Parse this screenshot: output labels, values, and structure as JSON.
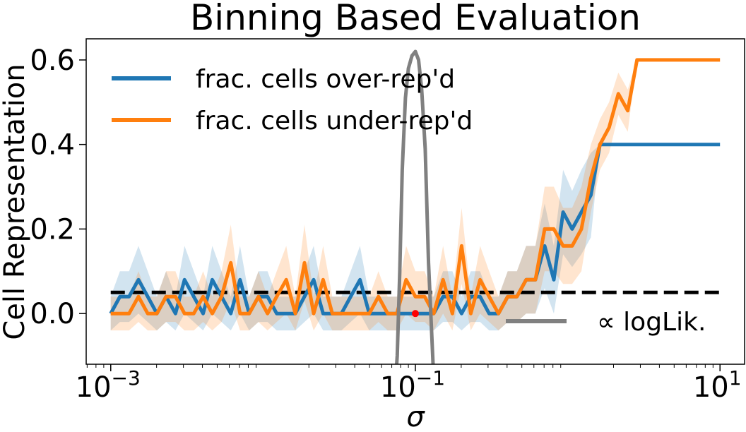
{
  "chart_data": {
    "type": "line",
    "title": "Binning Based Evaluation",
    "xlabel": "σ",
    "ylabel": "Cell Representation",
    "xscale": "log",
    "xlim": [
      0.00069,
      14.5
    ],
    "ylim": [
      -0.12,
      0.65
    ],
    "xticks": [
      {
        "value": 0.001,
        "base": "10",
        "exp": "−3"
      },
      {
        "value": 0.1,
        "base": "10",
        "exp": "−1"
      },
      {
        "value": 10,
        "base": "10",
        "exp": "1"
      }
    ],
    "yticks": [
      {
        "value": 0.0,
        "label": "0.0"
      },
      {
        "value": 0.2,
        "label": "0.2"
      },
      {
        "value": 0.4,
        "label": "0.4"
      },
      {
        "value": 0.6,
        "label": "0.6"
      }
    ],
    "legend_position": "top-left",
    "colors": {
      "over": "#1f77b4",
      "under": "#ff7f0e",
      "loglik": "#808080",
      "threshold": "#000000",
      "marker": "#ff0000"
    },
    "x": [
      0.001,
      0.00115,
      0.00132,
      0.00152,
      0.00175,
      0.00201,
      0.00231,
      0.00266,
      0.00305,
      0.00351,
      0.00404,
      0.00464,
      0.00534,
      0.00614,
      0.00706,
      0.00811,
      0.00933,
      0.0107,
      0.0123,
      0.0142,
      0.0163,
      0.0187,
      0.0215,
      0.0248,
      0.0285,
      0.0327,
      0.0376,
      0.0433,
      0.0498,
      0.0572,
      0.0658,
      0.0756,
      0.087,
      0.1,
      0.115,
      0.132,
      0.152,
      0.175,
      0.201,
      0.231,
      0.266,
      0.305,
      0.351,
      0.404,
      0.464,
      0.534,
      0.614,
      0.706,
      0.811,
      0.933,
      1.07,
      1.23,
      1.42,
      1.63,
      1.87,
      2.15,
      2.48,
      2.85,
      3.27,
      3.76,
      4.33,
      4.98,
      5.72,
      6.58,
      7.56,
      8.7,
      10.0
    ],
    "series": [
      {
        "name": "frac. cells over-rep'd",
        "values": [
          0.0,
          0.04,
          0.04,
          0.08,
          0.04,
          0.0,
          0.04,
          0.0,
          0.08,
          0.04,
          0.0,
          0.08,
          0.04,
          0.0,
          0.08,
          0.0,
          0.04,
          0.04,
          0.0,
          0.0,
          0.0,
          0.04,
          0.08,
          0.0,
          0.0,
          0.0,
          0.04,
          0.08,
          0.0,
          0.0,
          0.0,
          0.0,
          0.0,
          0.0,
          0.0,
          0.0,
          0.04,
          0.04,
          0.0,
          0.04,
          0.04,
          0.0,
          0.0,
          0.04,
          0.04,
          0.08,
          0.08,
          0.16,
          0.08,
          0.24,
          0.2,
          0.24,
          0.28,
          0.4,
          0.4,
          0.4,
          0.4,
          0.4,
          0.4,
          0.4,
          0.4,
          0.4,
          0.4,
          0.4,
          0.4,
          0.4,
          0.4
        ],
        "band": [
          0.04,
          0.06,
          0.06,
          0.08,
          0.06,
          0.04,
          0.06,
          0.04,
          0.08,
          0.06,
          0.04,
          0.08,
          0.06,
          0.04,
          0.08,
          0.04,
          0.06,
          0.06,
          0.04,
          0.04,
          0.04,
          0.06,
          0.08,
          0.04,
          0.04,
          0.04,
          0.06,
          0.08,
          0.04,
          0.04,
          0.04,
          0.04,
          0.04,
          0.04,
          0.04,
          0.04,
          0.06,
          0.06,
          0.04,
          0.06,
          0.06,
          0.04,
          0.04,
          0.06,
          0.06,
          0.08,
          0.08,
          0.1,
          0.08,
          0.1,
          0.09,
          0.1,
          0.1,
          0.0,
          0.0,
          0.0,
          0.0,
          0.0,
          0.0,
          0.0,
          0.0,
          0.0,
          0.0,
          0.0,
          0.0,
          0.0,
          0.0
        ]
      },
      {
        "name": "frac. cells under-rep'd",
        "values": [
          0.0,
          0.0,
          0.0,
          0.04,
          0.0,
          0.0,
          0.04,
          0.04,
          0.0,
          0.0,
          0.04,
          0.0,
          0.04,
          0.12,
          0.0,
          0.0,
          0.04,
          0.0,
          0.04,
          0.08,
          0.0,
          0.12,
          0.0,
          0.08,
          0.0,
          0.0,
          0.0,
          0.0,
          0.0,
          0.04,
          0.0,
          0.0,
          0.08,
          0.04,
          0.04,
          0.0,
          0.08,
          0.0,
          0.16,
          0.0,
          0.08,
          0.04,
          0.0,
          0.04,
          0.04,
          0.08,
          0.08,
          0.2,
          0.2,
          0.16,
          0.16,
          0.2,
          0.32,
          0.4,
          0.44,
          0.52,
          0.48,
          0.6,
          0.6,
          0.6,
          0.6,
          0.6,
          0.6,
          0.6,
          0.6,
          0.6,
          0.6
        ],
        "band": [
          0.04,
          0.04,
          0.04,
          0.06,
          0.04,
          0.04,
          0.06,
          0.06,
          0.04,
          0.04,
          0.06,
          0.04,
          0.06,
          0.09,
          0.04,
          0.04,
          0.06,
          0.04,
          0.06,
          0.08,
          0.04,
          0.09,
          0.04,
          0.08,
          0.04,
          0.04,
          0.04,
          0.04,
          0.04,
          0.06,
          0.04,
          0.04,
          0.08,
          0.06,
          0.06,
          0.04,
          0.08,
          0.04,
          0.09,
          0.04,
          0.08,
          0.06,
          0.04,
          0.06,
          0.06,
          0.08,
          0.08,
          0.1,
          0.1,
          0.09,
          0.09,
          0.1,
          0.08,
          0.06,
          0.06,
          0.05,
          0.05,
          0.0,
          0.0,
          0.0,
          0.0,
          0.0,
          0.0,
          0.0,
          0.0,
          0.0,
          0.0
        ]
      }
    ],
    "loglik": {
      "name": "∝ logLik.",
      "x": [
        0.07,
        0.076,
        0.079,
        0.082,
        0.086,
        0.09,
        0.095,
        0.1,
        0.105,
        0.11,
        0.116,
        0.122,
        0.13,
        0.137
      ],
      "y": [
        -0.3,
        -0.1,
        0.1,
        0.34,
        0.51,
        0.58,
        0.61,
        0.62,
        0.6,
        0.53,
        0.39,
        0.12,
        -0.1,
        -0.3
      ]
    },
    "threshold": {
      "y": 0.05,
      "xmin": 0.001,
      "xmax": 10.0
    },
    "marker": {
      "x": 0.1,
      "y": 0.0
    }
  }
}
